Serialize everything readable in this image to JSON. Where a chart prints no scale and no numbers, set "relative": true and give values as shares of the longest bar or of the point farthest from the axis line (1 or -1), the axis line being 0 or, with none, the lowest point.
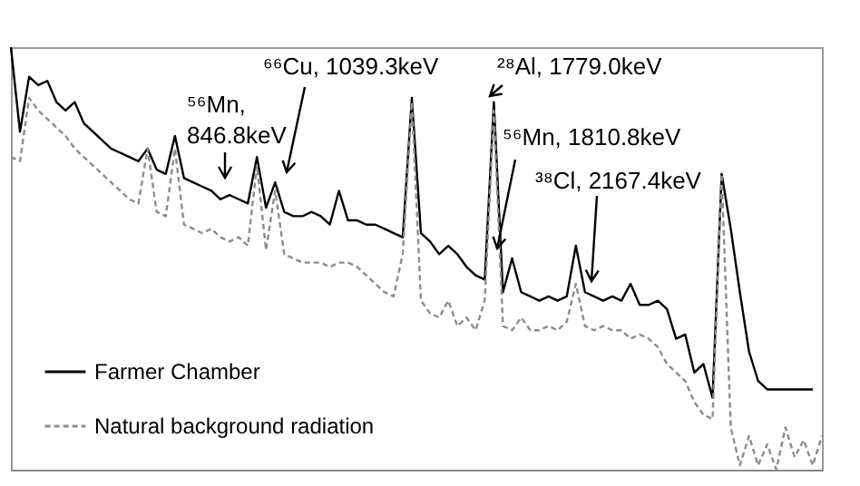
{
  "chart_data": {
    "type": "line",
    "relative": true,
    "legend": "bottom left",
    "grid": false,
    "marker": "none",
    "categories": [
      null,
      null,
      null,
      null,
      null,
      null,
      null,
      null,
      null,
      null,
      null,
      null,
      null,
      null,
      null,
      null,
      null,
      null,
      null,
      null,
      null,
      null,
      null,
      null,
      null,
      null,
      null,
      null,
      null,
      null,
      null,
      null,
      null,
      null,
      null,
      null,
      null,
      null,
      null,
      null,
      null,
      null,
      null,
      null,
      null,
      null,
      null,
      null,
      null,
      null,
      null,
      null,
      null,
      null,
      null,
      null,
      null,
      null,
      null,
      null,
      null,
      null,
      null,
      null,
      null,
      null,
      null,
      null,
      null,
      null,
      null,
      null,
      null,
      null,
      null,
      null,
      null,
      null,
      null,
      null,
      null,
      null,
      null,
      null,
      null,
      null,
      null,
      null,
      null,
      null
    ],
    "series": [
      {
        "name": "Farmer Chamber",
        "color": "#000000",
        "line_style": "solid",
        "values": [
          1.0,
          0.8,
          0.93,
          0.91,
          0.92,
          0.87,
          0.85,
          0.87,
          0.82,
          0.8,
          0.78,
          0.76,
          0.75,
          0.74,
          0.73,
          0.76,
          0.71,
          0.7,
          0.79,
          0.69,
          0.68,
          0.67,
          0.66,
          0.64,
          0.65,
          0.64,
          0.63,
          0.74,
          0.62,
          0.68,
          0.61,
          0.6,
          0.6,
          0.61,
          0.6,
          0.58,
          0.66,
          0.59,
          0.59,
          0.58,
          0.58,
          0.57,
          0.56,
          0.55,
          0.88,
          0.56,
          0.54,
          0.51,
          0.53,
          0.51,
          0.48,
          0.46,
          0.45,
          0.87,
          0.42,
          0.5,
          0.42,
          0.41,
          0.4,
          0.41,
          0.4,
          0.41,
          0.53,
          0.42,
          0.41,
          0.4,
          0.41,
          0.4,
          0.44,
          0.39,
          0.39,
          0.4,
          0.38,
          0.31,
          0.32,
          0.23,
          0.25,
          0.17,
          0.7,
          0.57,
          0.42,
          0.28,
          0.21,
          0.19,
          0.19,
          0.19,
          0.19,
          0.19,
          0.19,
          null
        ]
      },
      {
        "name": "Natural background radiation",
        "color": "#8c8c8c",
        "line_style": "dashed",
        "values": [
          0.74,
          0.73,
          0.88,
          0.85,
          0.83,
          0.81,
          0.79,
          0.76,
          0.74,
          0.72,
          0.7,
          0.68,
          0.66,
          0.64,
          0.63,
          0.76,
          0.61,
          0.6,
          0.76,
          0.58,
          0.57,
          0.56,
          0.57,
          0.55,
          0.54,
          0.55,
          0.53,
          0.72,
          0.52,
          0.66,
          0.51,
          0.5,
          0.49,
          0.49,
          0.49,
          0.48,
          0.49,
          0.49,
          0.48,
          0.46,
          0.44,
          0.42,
          0.41,
          0.51,
          0.87,
          0.4,
          0.37,
          0.36,
          0.4,
          0.34,
          0.36,
          0.33,
          0.4,
          0.85,
          0.34,
          0.33,
          0.36,
          0.33,
          0.33,
          0.34,
          0.33,
          0.35,
          0.44,
          0.34,
          0.33,
          0.34,
          0.33,
          0.33,
          0.31,
          0.32,
          0.31,
          0.29,
          0.25,
          0.23,
          0.21,
          0.16,
          0.13,
          0.12,
          0.7,
          0.1,
          0.01,
          0.08,
          0.01,
          0.06,
          0,
          0.1,
          0.03,
          0.07,
          0.01,
          0.08
        ]
      }
    ],
    "annotations": [
      "⁵⁶Mn,\n846.8keV",
      "⁶⁶Cu, 1039.3keV",
      "²⁸Al, 1779.0keV",
      "⁵⁶Mn, 1810.8keV",
      "³⁸Cl, 2167.4keV"
    ]
  }
}
